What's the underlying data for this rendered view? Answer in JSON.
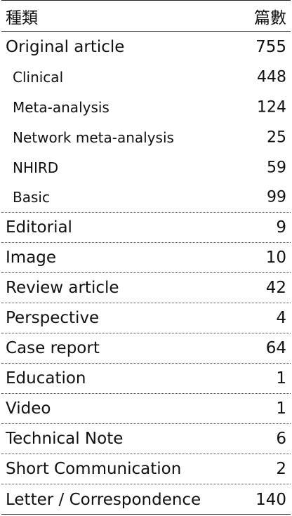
{
  "table": {
    "header": {
      "category": "種類",
      "count": "篇數"
    },
    "rows": [
      {
        "label": "Original article",
        "count": 755,
        "children": [
          {
            "label": "Clinical",
            "count": 448
          },
          {
            "label": "Meta-analysis",
            "count": 124
          },
          {
            "label": "Network meta-analysis",
            "count": 25
          },
          {
            "label": "NHIRD",
            "count": 59
          },
          {
            "label": "Basic",
            "count": 99
          }
        ]
      },
      {
        "label": "Editorial",
        "count": 9
      },
      {
        "label": "Image",
        "count": 10
      },
      {
        "label": "Review article",
        "count": 42
      },
      {
        "label": "Perspective",
        "count": 4
      },
      {
        "label": "Case report",
        "count": 64
      },
      {
        "label": "Education",
        "count": 1
      },
      {
        "label": "Video",
        "count": 1
      },
      {
        "label": "Technical Note",
        "count": 6
      },
      {
        "label": "Short Communication",
        "count": 2
      },
      {
        "label": "Letter / Correspondence",
        "count": 140
      }
    ]
  }
}
